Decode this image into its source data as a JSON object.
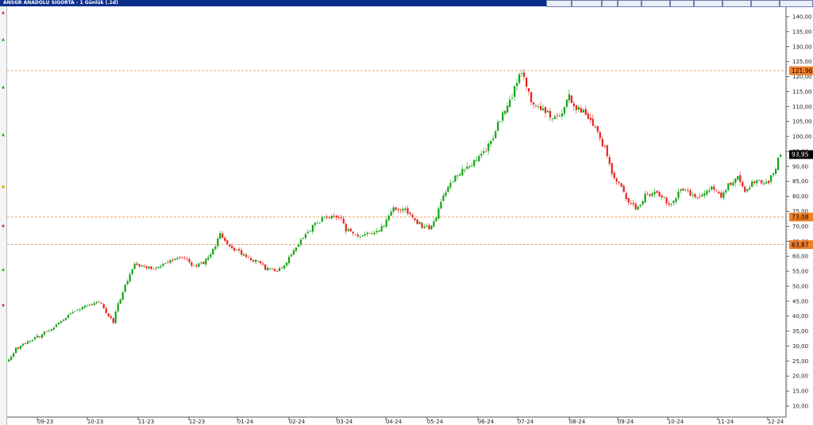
{
  "window": {
    "title": "ANSGR ANADOLU SIGORTA - 1 Günlük (.1d)",
    "status_boxes": [
      "",
      "",
      "",
      "",
      "",
      "",
      "",
      "",
      "",
      ""
    ]
  },
  "colors": {
    "up": "#13a313",
    "down": "#e8221b",
    "level_line": "#e8893a",
    "level_tag": "#f07f2a",
    "last_tag": "#000000",
    "axis": "#555555",
    "titlebar": "#0b2e8a"
  },
  "chart_data": {
    "type": "candlestick",
    "title": "ANSGR ANADOLU SIGORTA - 1 Günlük (.1d)",
    "ylim": [
      5,
      145
    ],
    "y_ticks": [
      10,
      15,
      20,
      25,
      30,
      35,
      40,
      45,
      50,
      55,
      60,
      65,
      70,
      75,
      80,
      85,
      90,
      95,
      100,
      105,
      110,
      115,
      120,
      125,
      130,
      135,
      140
    ],
    "y_tick_labels": [
      "10,00",
      "15,00",
      "20,00",
      "25,00",
      "30,00",
      "35,00",
      "40,00",
      "45,00",
      "50,00",
      "55,00",
      "60,00",
      "65,00",
      "70,00",
      "75,00",
      "80,00",
      "85,00",
      "90,00",
      "95,00",
      "100,00",
      "105,00",
      "110,00",
      "115,00",
      "120,00",
      "125,00",
      "130,00",
      "135,00",
      "140,00"
    ],
    "x_tick_labels": [
      "09-23",
      "10-23",
      "11-23",
      "12-23",
      "01-24",
      "02-24",
      "03-24",
      "04-24",
      "05-24",
      "06-24",
      "07-24",
      "08-24",
      "09-24",
      "10-24",
      "11-24",
      "12-24"
    ],
    "horizontal_levels": [
      {
        "value": 121.96,
        "label": "121,96"
      },
      {
        "value": 73.08,
        "label": "73,08"
      },
      {
        "value": 63.87,
        "label": "63,87"
      }
    ],
    "last_price": {
      "value": 93.95,
      "label": "93,95"
    },
    "price_path": [
      [
        0,
        25
      ],
      [
        3,
        29
      ],
      [
        10,
        32
      ],
      [
        18,
        36
      ],
      [
        25,
        40
      ],
      [
        32,
        43
      ],
      [
        38,
        45
      ],
      [
        42,
        40
      ],
      [
        44,
        38
      ],
      [
        46,
        44
      ],
      [
        50,
        52
      ],
      [
        53,
        58
      ],
      [
        55,
        57
      ],
      [
        60,
        56
      ],
      [
        67,
        58
      ],
      [
        72,
        60
      ],
      [
        78,
        57
      ],
      [
        82,
        58
      ],
      [
        86,
        62
      ],
      [
        89,
        67
      ],
      [
        94,
        63
      ],
      [
        100,
        60
      ],
      [
        105,
        58
      ],
      [
        108,
        56
      ],
      [
        112,
        55
      ],
      [
        116,
        57
      ],
      [
        121,
        63
      ],
      [
        125,
        67
      ],
      [
        129,
        71
      ],
      [
        133,
        73
      ],
      [
        137,
        74
      ],
      [
        140,
        72
      ],
      [
        142,
        69
      ],
      [
        145,
        67
      ],
      [
        150,
        67
      ],
      [
        155,
        68
      ],
      [
        158,
        71
      ],
      [
        162,
        76
      ],
      [
        166,
        76
      ],
      [
        170,
        73
      ],
      [
        174,
        70
      ],
      [
        177,
        69
      ],
      [
        180,
        73
      ],
      [
        184,
        82
      ],
      [
        188,
        87
      ],
      [
        192,
        89
      ],
      [
        197,
        92
      ],
      [
        201,
        95
      ],
      [
        204,
        100
      ],
      [
        207,
        106
      ],
      [
        211,
        112
      ],
      [
        213,
        116
      ],
      [
        216,
        122
      ],
      [
        218,
        117
      ],
      [
        220,
        112
      ],
      [
        223,
        110
      ],
      [
        226,
        108
      ],
      [
        229,
        107
      ],
      [
        232,
        106
      ],
      [
        234,
        110
      ],
      [
        236,
        113
      ],
      [
        239,
        110
      ],
      [
        242,
        108
      ],
      [
        245,
        106
      ],
      [
        248,
        101
      ],
      [
        251,
        96
      ],
      [
        253,
        90
      ],
      [
        255,
        86
      ],
      [
        258,
        83
      ],
      [
        261,
        78
      ],
      [
        265,
        76
      ],
      [
        268,
        80
      ],
      [
        272,
        81
      ],
      [
        276,
        79
      ],
      [
        279,
        77
      ],
      [
        282,
        81
      ],
      [
        285,
        83
      ],
      [
        289,
        79
      ],
      [
        292,
        81
      ],
      [
        296,
        83
      ],
      [
        300,
        80
      ],
      [
        303,
        84
      ],
      [
        307,
        86
      ],
      [
        310,
        82
      ],
      [
        313,
        84
      ],
      [
        317,
        85
      ],
      [
        320,
        85
      ],
      [
        323,
        89
      ],
      [
        324,
        92
      ],
      [
        325,
        93.95
      ]
    ],
    "price_seed": 20230901
  }
}
